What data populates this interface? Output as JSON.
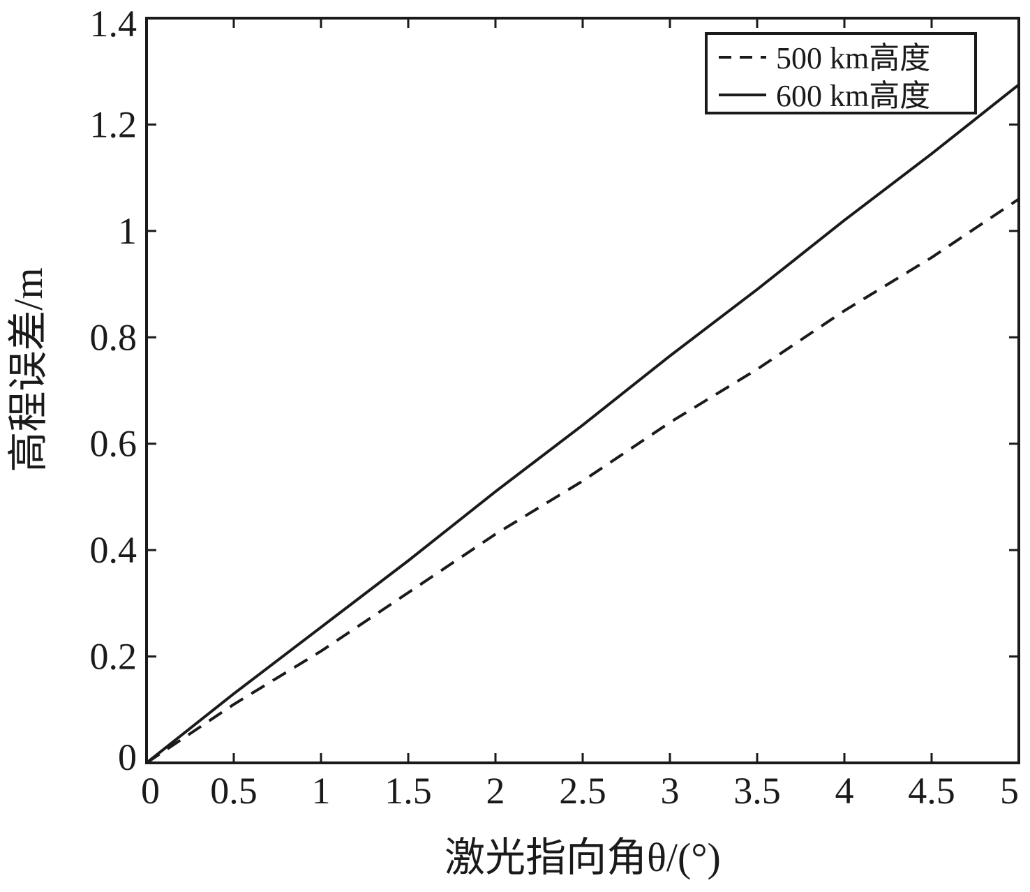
{
  "chart_data": {
    "type": "line",
    "title": "",
    "xlabel": "激光指向角θ/(°)",
    "ylabel": "高程误差/m",
    "xlim": [
      0,
      5
    ],
    "ylim": [
      0,
      1.4
    ],
    "xticks": [
      0,
      0.5,
      1,
      1.5,
      2,
      2.5,
      3,
      3.5,
      4,
      4.5,
      5
    ],
    "xtick_labels": [
      "0",
      "0.5",
      "1",
      "1.5",
      "2",
      "2.5",
      "3",
      "3.5",
      "4",
      "4.5",
      "5"
    ],
    "yticks": [
      0,
      0.2,
      0.4,
      0.6,
      0.8,
      1.0,
      1.2,
      1.4
    ],
    "ytick_labels": [
      "0",
      "0.2",
      "0.4",
      "0.6",
      "0.8",
      "1",
      "1.2",
      "1.4"
    ],
    "grid": false,
    "legend_position": "top-right",
    "series": [
      {
        "name": "500 km高度",
        "style": "dashed",
        "color": "#1a1a1a",
        "x": [
          0,
          0.5,
          1,
          1.5,
          2,
          2.5,
          3,
          3.5,
          4,
          4.5,
          5
        ],
        "y": [
          0,
          0.11,
          0.21,
          0.32,
          0.43,
          0.53,
          0.64,
          0.74,
          0.85,
          0.95,
          1.06
        ]
      },
      {
        "name": "600 km高度",
        "style": "solid",
        "color": "#1a1a1a",
        "x": [
          0,
          0.5,
          1,
          1.5,
          2,
          2.5,
          3,
          3.5,
          4,
          4.5,
          5
        ],
        "y": [
          0,
          0.13,
          0.255,
          0.38,
          0.51,
          0.635,
          0.765,
          0.89,
          1.02,
          1.145,
          1.275
        ]
      }
    ]
  }
}
